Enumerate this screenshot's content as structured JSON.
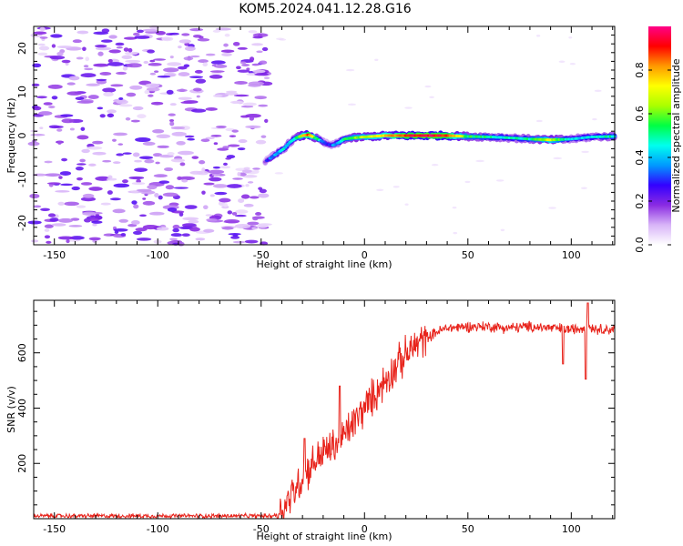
{
  "title": "KOM5.2024.041.12.28.G16",
  "chart_data": [
    {
      "type": "heatmap",
      "xlabel": "Height of straight line (km)",
      "ylabel": "Frequency (Hz)",
      "xlim": [
        -160,
        121
      ],
      "ylim": [
        -25,
        25
      ],
      "xticks": [
        "-150",
        "-100",
        "-50",
        "0",
        "50",
        "100"
      ],
      "yticks": [
        "-20",
        "-10",
        "0",
        "10",
        "20"
      ],
      "colorbar": {
        "label": "Normalized spectral amplitude",
        "range": [
          0,
          1
        ],
        "ticks": [
          "0.0",
          "0.2",
          "0.4",
          "0.6",
          "0.8"
        ],
        "colormap": [
          "#ffffff",
          "#d8b4f8",
          "#8a2be2",
          "#3300ff",
          "#0099ff",
          "#00ffee",
          "#00ff44",
          "#aaff00",
          "#ffff00",
          "#ff9900",
          "#ff0000",
          "#ff0088"
        ]
      },
      "noise_region": {
        "x_range": [
          -160,
          -47
        ],
        "freq_range": [
          -25,
          25
        ],
        "amplitude": "0.05-0.25"
      },
      "signal_track": {
        "x": [
          -48,
          -45,
          -42,
          -39,
          -36,
          -33,
          -30,
          -27,
          -24,
          -21,
          -18,
          -15,
          -12,
          -10,
          -5,
          0,
          10,
          20,
          30,
          40,
          50,
          60,
          70,
          80,
          90,
          100,
          110,
          121
        ],
        "freq": [
          -6,
          -5,
          -4,
          -3,
          -1.5,
          -0.5,
          0,
          0.2,
          -0.5,
          -1.2,
          -2,
          -2.2,
          -1.5,
          -0.8,
          -0.5,
          -0.3,
          0,
          0,
          0,
          0,
          -0.2,
          -0.3,
          -0.5,
          -0.8,
          -1,
          -0.8,
          -0.3,
          -0.2
        ],
        "amplitude": [
          0.2,
          0.35,
          0.4,
          0.45,
          0.4,
          0.5,
          0.7,
          0.9,
          0.6,
          0.4,
          0.3,
          0.35,
          0.45,
          0.5,
          0.6,
          0.65,
          0.75,
          0.9,
          0.95,
          0.9,
          0.55,
          0.5,
          0.45,
          0.5,
          0.7,
          0.4,
          0.45,
          0.5
        ]
      }
    },
    {
      "type": "line",
      "xlabel": "Height of straight line (km)",
      "ylabel": "SNR (v/v)",
      "xlim": [
        -160,
        121
      ],
      "ylim": [
        0,
        790
      ],
      "xticks": [
        "-150",
        "-100",
        "-50",
        "0",
        "50",
        "100"
      ],
      "yticks": [
        "200",
        "400",
        "600"
      ],
      "series": [
        {
          "color": "#e8241c",
          "x": [
            -160,
            -140,
            -120,
            -100,
            -80,
            -60,
            -45,
            -42,
            -40,
            -35,
            -30,
            -25,
            -20,
            -15,
            -10,
            -5,
            0,
            5,
            10,
            15,
            20,
            25,
            30,
            35,
            40,
            50,
            60,
            70,
            80,
            90,
            100,
            105,
            108,
            110,
            115,
            121
          ],
          "y": [
            10,
            10,
            10,
            10,
            10,
            10,
            10,
            15,
            30,
            90,
            150,
            200,
            240,
            260,
            300,
            350,
            400,
            450,
            500,
            550,
            590,
            630,
            655,
            675,
            690,
            695,
            695,
            690,
            695,
            690,
            685,
            690,
            700,
            690,
            685,
            685
          ],
          "noise": [
            [
              -160,
              -41,
              8
            ],
            [
              -41,
              30,
              70
            ],
            [
              30,
              121,
              20
            ]
          ],
          "spikes": [
            [
              -12,
              480
            ],
            [
              -29,
              290
            ],
            [
              -42,
              0
            ],
            [
              96,
              560
            ],
            [
              107,
              505
            ],
            [
              108,
              780
            ]
          ]
        }
      ]
    }
  ]
}
